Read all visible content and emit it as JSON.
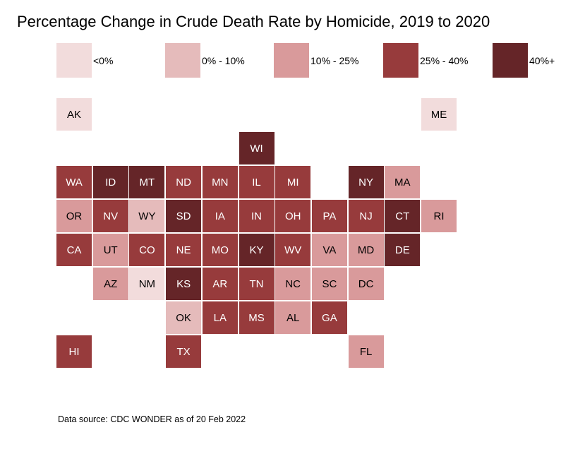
{
  "chart_data": {
    "type": "heatmap",
    "subtype": "tile-grid-map",
    "title": "Percentage Change in Crude Death Rate by Homicide, 2019 to 2020",
    "legend": {
      "placement": "top",
      "categories": [
        {
          "label": "<0%",
          "color": "#f2dcdc",
          "text_color": "#000000"
        },
        {
          "label": "0% - 10%",
          "color": "#e5bbbb",
          "text_color": "#000000"
        },
        {
          "label": "10% - 25%",
          "color": "#d99a9b",
          "text_color": "#000000"
        },
        {
          "label": "25% - 40%",
          "color": "#973b3c",
          "text_color": "#ffffff"
        },
        {
          "label": "40%+",
          "color": "#652528",
          "text_color": "#ffffff"
        }
      ]
    },
    "states": {
      "AK": 0,
      "ME": 0,
      "WI": 4,
      "WA": 3,
      "ID": 4,
      "MT": 4,
      "ND": 3,
      "MN": 3,
      "IL": 3,
      "MI": 3,
      "NY": 4,
      "MA": 2,
      "OR": 2,
      "NV": 3,
      "WY": 1,
      "SD": 4,
      "IA": 3,
      "IN": 3,
      "OH": 3,
      "PA": 3,
      "NJ": 3,
      "CT": 4,
      "RI": 2,
      "CA": 3,
      "UT": 2,
      "CO": 3,
      "NE": 3,
      "MO": 3,
      "KY": 4,
      "WV": 3,
      "VA": 2,
      "MD": 2,
      "DE": 4,
      "AZ": 2,
      "NM": 0,
      "KS": 4,
      "AR": 3,
      "TN": 3,
      "NC": 2,
      "SC": 2,
      "DC": 2,
      "OK": 1,
      "LA": 3,
      "MS": 3,
      "AL": 2,
      "GA": 3,
      "HI": 3,
      "TX": 3,
      "FL": 2
    },
    "source": "Data source: CDC WONDER as of 20 Feb 2022"
  }
}
